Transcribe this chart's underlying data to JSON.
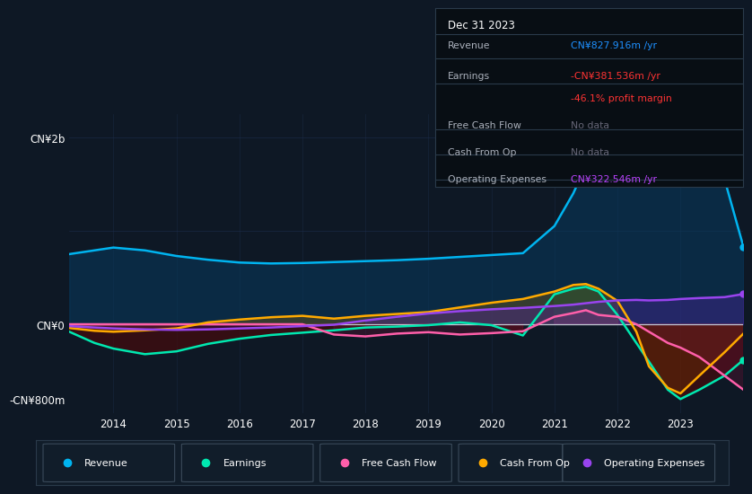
{
  "bg_color": "#0e1825",
  "plot_bg": "#0e1825",
  "grid_color": "#1e3050",
  "zero_line_color": "#c0c8d0",
  "title_box": {
    "date": "Dec 31 2023",
    "rows": [
      {
        "label": "Revenue",
        "value": "CN¥827.916m /yr",
        "value_color": "#1e90ff"
      },
      {
        "label": "Earnings",
        "value": "-CN¥381.536m /yr",
        "value_color": "#ff3333"
      },
      {
        "label": "",
        "value": "-46.1% profit margin",
        "value_color": "#ff3333"
      },
      {
        "label": "Free Cash Flow",
        "value": "No data",
        "value_color": "#666677"
      },
      {
        "label": "Cash From Op",
        "value": "No data",
        "value_color": "#666677"
      },
      {
        "label": "Operating Expenses",
        "value": "CN¥322.546m /yr",
        "value_color": "#bb44ff"
      }
    ]
  },
  "years": [
    2013.3,
    2013.7,
    2014.0,
    2014.5,
    2015.0,
    2015.5,
    2016.0,
    2016.5,
    2017.0,
    2017.5,
    2018.0,
    2018.5,
    2019.0,
    2019.5,
    2020.0,
    2020.5,
    2021.0,
    2021.3,
    2021.5,
    2021.7,
    2022.0,
    2022.3,
    2022.5,
    2022.8,
    2023.0,
    2023.3,
    2023.7,
    2024.0
  ],
  "revenue": [
    750,
    790,
    820,
    790,
    730,
    690,
    660,
    650,
    655,
    665,
    675,
    685,
    700,
    720,
    740,
    760,
    1050,
    1400,
    1700,
    1850,
    2000,
    2050,
    2050,
    1950,
    1900,
    1800,
    1550,
    828
  ],
  "earnings": [
    -80,
    -200,
    -260,
    -320,
    -290,
    -210,
    -155,
    -115,
    -90,
    -65,
    -35,
    -25,
    -10,
    20,
    -10,
    -120,
    320,
    380,
    400,
    350,
    100,
    -200,
    -400,
    -700,
    -800,
    -700,
    -550,
    -381
  ],
  "free_cash_flow": [
    0,
    0,
    0,
    0,
    0,
    0,
    0,
    0,
    0,
    -110,
    -130,
    -100,
    -85,
    -110,
    -95,
    -75,
    80,
    120,
    150,
    100,
    80,
    0,
    -80,
    -200,
    -250,
    -350,
    -550,
    -700
  ],
  "cash_from_op": [
    -40,
    -70,
    -80,
    -65,
    -45,
    20,
    50,
    75,
    90,
    60,
    90,
    110,
    130,
    180,
    230,
    270,
    350,
    420,
    430,
    380,
    250,
    -80,
    -450,
    -680,
    -740,
    -550,
    -300,
    -100
  ],
  "operating_expenses": [
    -20,
    -35,
    -45,
    -55,
    -60,
    -55,
    -45,
    -35,
    -20,
    -5,
    40,
    80,
    115,
    140,
    160,
    175,
    195,
    210,
    225,
    240,
    255,
    260,
    255,
    260,
    270,
    280,
    290,
    323
  ],
  "revenue_color": "#00b4f0",
  "earnings_color": "#00e8b0",
  "fcf_color": "#ff5faa",
  "cfo_color": "#ffaa00",
  "opex_color": "#9944ee",
  "ylabel_top": "CN¥2b",
  "ylabel_zero": "CN¥0",
  "ylabel_bottom": "-CN¥800m",
  "ylim_min": -950,
  "ylim_max": 2250,
  "xticks": [
    2014,
    2015,
    2016,
    2017,
    2018,
    2019,
    2020,
    2021,
    2022,
    2023
  ],
  "legend": [
    {
      "label": "Revenue",
      "color": "#00b4f0"
    },
    {
      "label": "Earnings",
      "color": "#00e8b0"
    },
    {
      "label": "Free Cash Flow",
      "color": "#ff5faa"
    },
    {
      "label": "Cash From Op",
      "color": "#ffaa00"
    },
    {
      "label": "Operating Expenses",
      "color": "#9944ee"
    }
  ]
}
